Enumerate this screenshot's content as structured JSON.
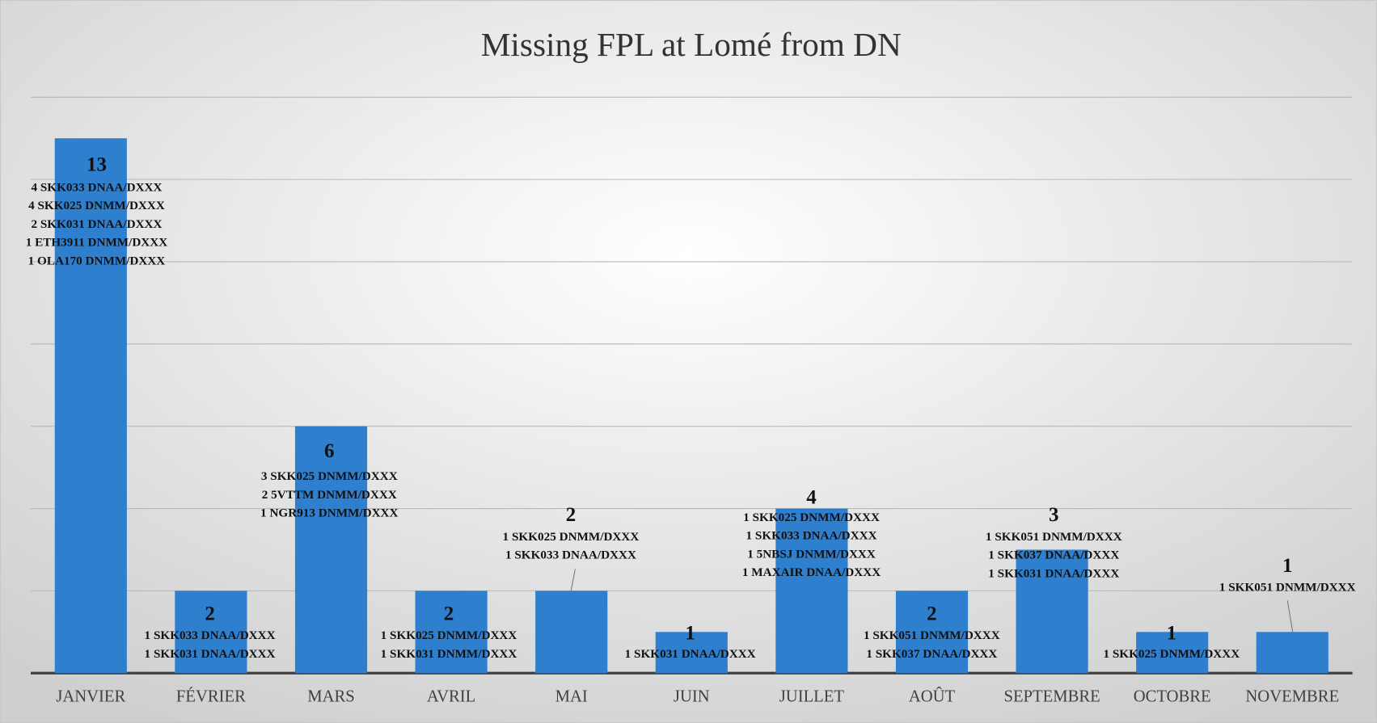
{
  "chart_data": {
    "type": "bar",
    "title": "Missing FPL at Lomé from DN",
    "categories": [
      "JANVIER",
      "FÉVRIER",
      "MARS",
      "AVRIL",
      "MAI",
      "JUIN",
      "JUILLET",
      "AOÛT",
      "SEPTEMBRE",
      "OCTOBRE",
      "NOVEMBRE"
    ],
    "values": [
      13,
      2,
      6,
      2,
      2,
      1,
      4,
      2,
      3,
      1,
      1
    ],
    "annotations": [
      [
        "4 SKK033 DNAA/DXXX",
        "4 SKK025 DNMM/DXXX",
        "2 SKK031 DNAA/DXXX",
        "1 ETH3911 DNMM/DXXX",
        "1 OLA170 DNMM/DXXX"
      ],
      [
        "1 SKK033 DNAA/DXXX",
        "1 SKK031 DNAA/DXXX"
      ],
      [
        "3 SKK025 DNMM/DXXX",
        "2 5VTTM DNMM/DXXX",
        "1 NGR913 DNMM/DXXX"
      ],
      [
        "1 SKK025 DNMM/DXXX",
        "1 SKK031 DNMM/DXXX"
      ],
      [
        "1 SKK025 DNMM/DXXX",
        "1 SKK033 DNAA/DXXX"
      ],
      [
        "1 SKK031 DNAA/DXXX"
      ],
      [
        "1 SKK025 DNMM/DXXX",
        "1 SKK033 DNAA/DXXX",
        "1 5NBSJ DNMM/DXXX",
        "1 MAXAIR DNAA/DXXX"
      ],
      [
        "1 SKK051 DNMM/DXXX",
        "1 SKK037 DNAA/DXXX"
      ],
      [
        "1 SKK051 DNMM/DXXX",
        "1 SKK037 DNAA/DXXX",
        "1 SKK031 DNAA/DXXX"
      ],
      [
        "1 SKK025 DNMM/DXXX"
      ],
      [
        "1 SKK051 DNMM/DXXX"
      ]
    ],
    "color": "#2f7fcf",
    "ylim": [
      0,
      14
    ],
    "yticks": [
      0,
      2,
      4,
      6,
      8,
      10,
      12,
      14
    ],
    "grid": true
  }
}
